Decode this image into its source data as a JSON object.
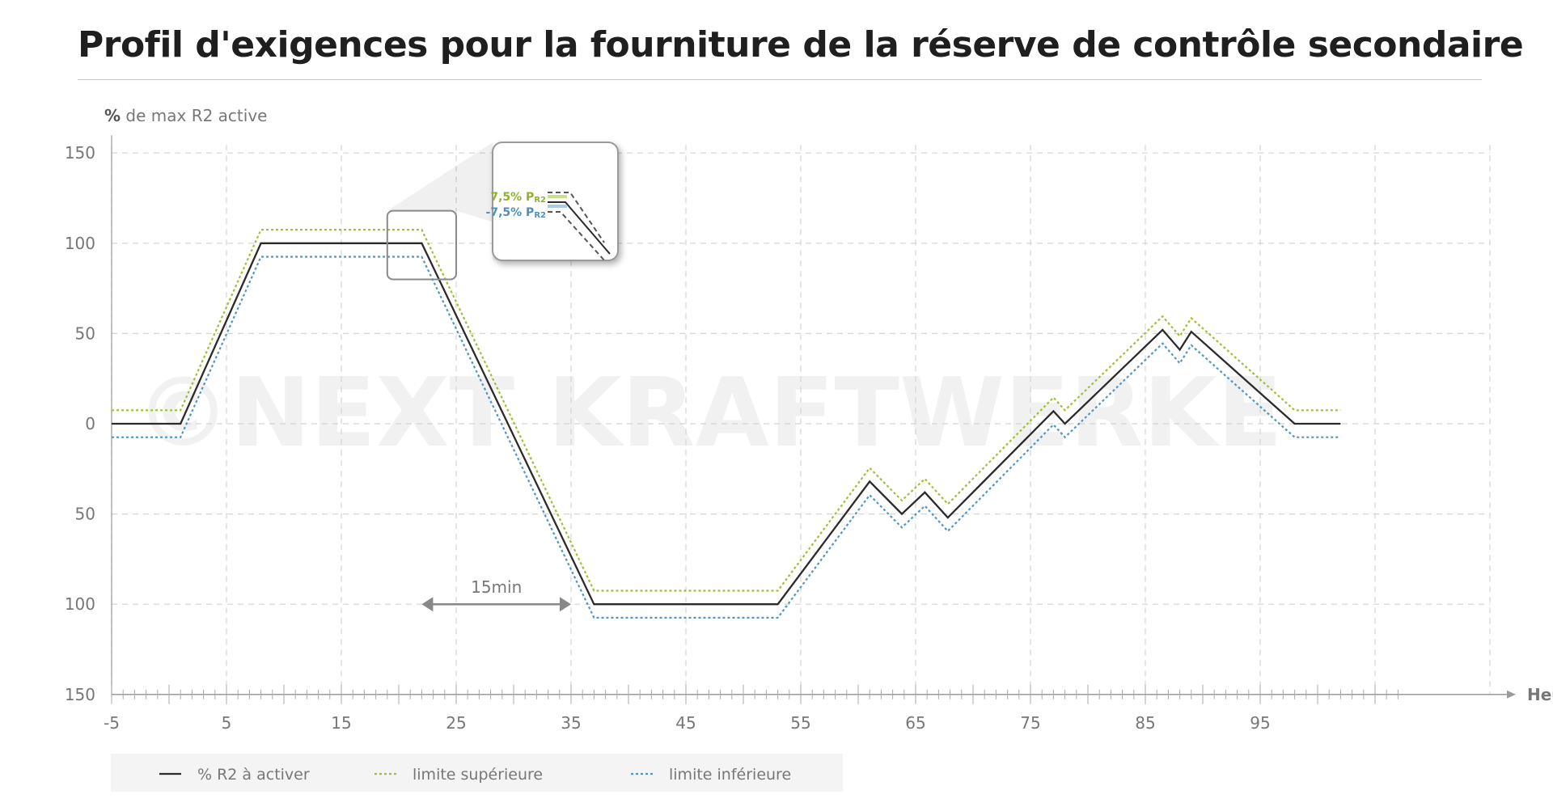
{
  "chart_data": {
    "type": "line",
    "title": "Profil d'exigences pour la fourniture de la réserve de contrôle secondaire",
    "ylabel_unit": "%",
    "ylabel_text": "de max R2 active",
    "xlabel": "Heure (min)",
    "xlim": [
      -5,
      115
    ],
    "ylim": [
      -150,
      150
    ],
    "x_ticks": [
      -5,
      5,
      15,
      25,
      35,
      45,
      55,
      65,
      75,
      85,
      95
    ],
    "y_ticks": [
      {
        "value": 150,
        "label": "150"
      },
      {
        "value": 100,
        "label": "100"
      },
      {
        "value": 50,
        "label": "50"
      },
      {
        "value": 0,
        "label": "0"
      },
      {
        "value": -50,
        "label": "50"
      },
      {
        "value": -100,
        "label": "100"
      },
      {
        "value": -150,
        "label": "150"
      }
    ],
    "grid": true,
    "series": [
      {
        "name": "% R2 à activer",
        "color": "#2b2b2b",
        "style": "solid",
        "x": [
          -5,
          1,
          8,
          22,
          37,
          53,
          61,
          63.8,
          65.8,
          67.8,
          77,
          78,
          86.5,
          88,
          89,
          98,
          102
        ],
        "y": [
          0,
          0,
          100,
          100,
          -100,
          -100,
          -32,
          -50,
          -38,
          -52,
          7,
          0,
          52,
          41,
          51,
          0,
          0
        ]
      },
      {
        "name": "limite supérieure",
        "color": "#9cc133",
        "style": "dotted",
        "x": [
          -5,
          1,
          8,
          22,
          37,
          53,
          61,
          63.8,
          65.8,
          67.8,
          77,
          78,
          86.5,
          88,
          89,
          98,
          102
        ],
        "y": [
          7.5,
          7.5,
          107.5,
          107.5,
          -92.5,
          -92.5,
          -24.5,
          -42.5,
          -30.5,
          -44.5,
          14.5,
          7.5,
          59.5,
          48.5,
          58.5,
          7.5,
          7.5
        ]
      },
      {
        "name": "limite inférieure",
        "color": "#4f95c8",
        "style": "dotted",
        "x": [
          -5,
          1,
          8,
          22,
          37,
          53,
          61,
          63.8,
          65.8,
          67.8,
          77,
          78,
          86.5,
          88,
          89,
          98,
          102
        ],
        "y": [
          -7.5,
          -7.5,
          92.5,
          92.5,
          -107.5,
          -107.5,
          -39.5,
          -57.5,
          -45.5,
          -59.5,
          -0.5,
          -7.5,
          44.5,
          33.5,
          43.5,
          -7.5,
          -7.5
        ]
      }
    ],
    "annotations": {
      "interval": {
        "label": "15min",
        "x_start": 22,
        "x_end": 35,
        "y": -100
      },
      "zoom_box": {
        "x_start": 19,
        "x_end": 25,
        "y_start": 80,
        "y_end": 118
      },
      "inset_upper": "7,5% P",
      "inset_upper_sub": "R2",
      "inset_lower": "-7,5% P",
      "inset_lower_sub": "R2"
    },
    "legend_position": "bottom-left",
    "watermark": "©NEXT KRAFTWERKE"
  }
}
